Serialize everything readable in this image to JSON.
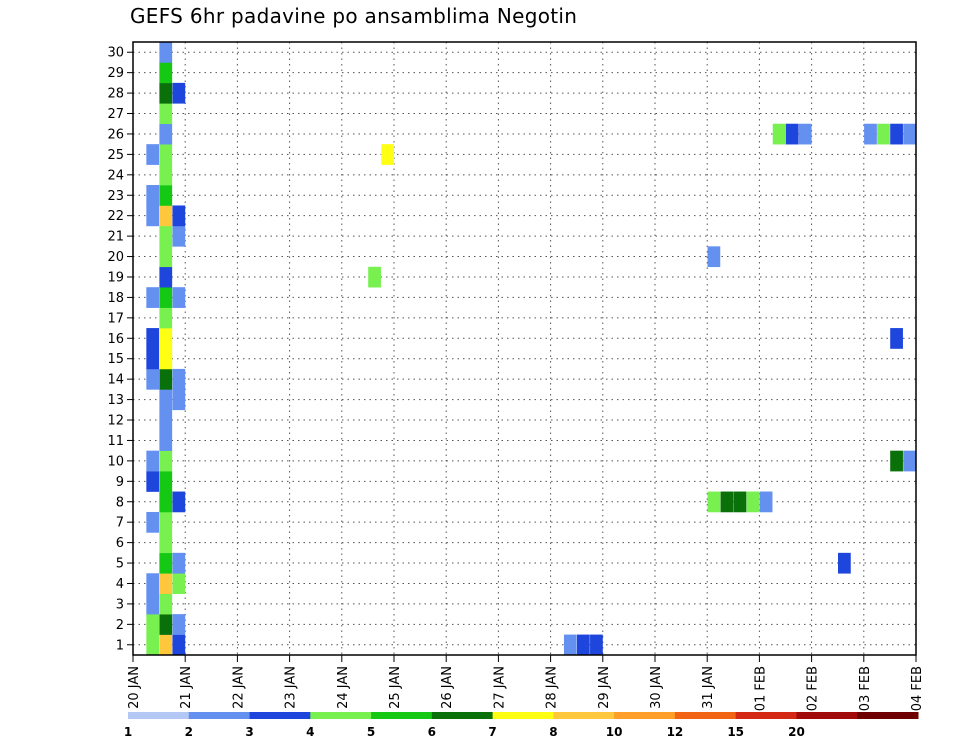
{
  "chart_data": {
    "type": "heatmap",
    "title": "GEFS 6hr padavine po ansamblima Negotin",
    "xlabel": "",
    "ylabel": "",
    "y_ticks": [
      1,
      2,
      3,
      4,
      5,
      6,
      7,
      8,
      9,
      10,
      11,
      12,
      13,
      14,
      15,
      16,
      17,
      18,
      19,
      20,
      21,
      22,
      23,
      24,
      25,
      26,
      27,
      28,
      29,
      30
    ],
    "x_tick_labels": [
      "20 JAN",
      "21 JAN",
      "22 JAN",
      "23 JAN",
      "24 JAN",
      "25 JAN",
      "26 JAN",
      "27 JAN",
      "28 JAN",
      "29 JAN",
      "30 JAN",
      "31 JAN",
      "01 FEB",
      "02 FEB",
      "03 FEB",
      "04 FEB"
    ],
    "xlim_days": [
      0,
      15
    ],
    "ylim": [
      0.5,
      30.5
    ],
    "grid": true,
    "colorbar": {
      "labels": [
        "1",
        "2",
        "3",
        "4",
        "5",
        "6",
        "7",
        "8",
        "10",
        "12",
        "15",
        "20"
      ],
      "colors": [
        "#b4c8f5",
        "#6490f0",
        "#1e46dc",
        "#78f050",
        "#14c814",
        "#0a700a",
        "#ffff14",
        "#ffc83c",
        "#ff9e28",
        "#f06414",
        "#d22814",
        "#a00a0a",
        "#6e0000"
      ]
    },
    "cells": [
      [
        0.25,
        1,
        3
      ],
      [
        0.5,
        1,
        7
      ],
      [
        0.75,
        1,
        2
      ],
      [
        8.25,
        1,
        1
      ],
      [
        8.5,
        1,
        2
      ],
      [
        8.75,
        1,
        2
      ],
      [
        0.25,
        2,
        3
      ],
      [
        0.5,
        2,
        5
      ],
      [
        0.75,
        2,
        1
      ],
      [
        0.25,
        3,
        1
      ],
      [
        0.5,
        3,
        3
      ],
      [
        0.25,
        4,
        1
      ],
      [
        0.5,
        4,
        7
      ],
      [
        0.75,
        4,
        3
      ],
      [
        0.5,
        5,
        4
      ],
      [
        0.75,
        5,
        1
      ],
      [
        13.5,
        5,
        2
      ],
      [
        0.5,
        6,
        3
      ],
      [
        0.25,
        7,
        1
      ],
      [
        0.5,
        7,
        3
      ],
      [
        0.5,
        8,
        4
      ],
      [
        0.75,
        8,
        2
      ],
      [
        11,
        8,
        3
      ],
      [
        11.25,
        8,
        5
      ],
      [
        11.5,
        8,
        5
      ],
      [
        11.75,
        8,
        3
      ],
      [
        12,
        8,
        1
      ],
      [
        0.25,
        9,
        2
      ],
      [
        0.5,
        9,
        4
      ],
      [
        0.25,
        10,
        1
      ],
      [
        0.5,
        10,
        3
      ],
      [
        14.5,
        10,
        5
      ],
      [
        14.75,
        10,
        1
      ],
      [
        0.5,
        11,
        1
      ],
      [
        0.5,
        12,
        1
      ],
      [
        0.5,
        13,
        1
      ],
      [
        0.75,
        13,
        1
      ],
      [
        0.25,
        14,
        1
      ],
      [
        0.5,
        14,
        5
      ],
      [
        0.75,
        14,
        1
      ],
      [
        0.25,
        15,
        2
      ],
      [
        0.5,
        15,
        6
      ],
      [
        0.25,
        16,
        2
      ],
      [
        0.5,
        16,
        6
      ],
      [
        14.5,
        16,
        2
      ],
      [
        0.5,
        17,
        3
      ],
      [
        0.25,
        18,
        1
      ],
      [
        0.5,
        18,
        4
      ],
      [
        0.75,
        18,
        1
      ],
      [
        0.5,
        19,
        2
      ],
      [
        4.5,
        19,
        3
      ],
      [
        0.5,
        20,
        3
      ],
      [
        11,
        20,
        1
      ],
      [
        0.5,
        21,
        3
      ],
      [
        0.75,
        21,
        1
      ],
      [
        0.25,
        22,
        1
      ],
      [
        0.5,
        22,
        7
      ],
      [
        0.75,
        22,
        2
      ],
      [
        0.25,
        23,
        1
      ],
      [
        0.5,
        23,
        4
      ],
      [
        0.5,
        24,
        3
      ],
      [
        0.25,
        25,
        1
      ],
      [
        0.5,
        25,
        3
      ],
      [
        4.75,
        25,
        6
      ],
      [
        0.5,
        26,
        1
      ],
      [
        12.25,
        26,
        3
      ],
      [
        12.5,
        26,
        2
      ],
      [
        12.75,
        26,
        1
      ],
      [
        14,
        26,
        1
      ],
      [
        14.25,
        26,
        3
      ],
      [
        14.5,
        26,
        2
      ],
      [
        14.75,
        26,
        1
      ],
      [
        0.5,
        27,
        3
      ],
      [
        0.5,
        28,
        5
      ],
      [
        0.75,
        28,
        2
      ],
      [
        0.5,
        29,
        4
      ],
      [
        0.5,
        30,
        1
      ]
    ]
  }
}
